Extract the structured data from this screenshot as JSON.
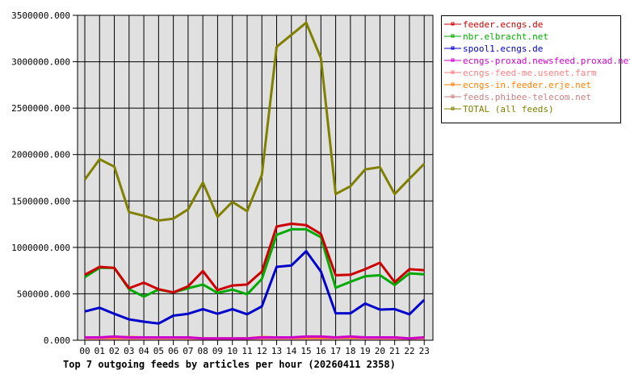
{
  "chart_data": {
    "type": "line",
    "title": "Top 7 outgoing feeds by articles per hour (20260411 2358)",
    "xlabel": "",
    "ylabel": "",
    "ylim": [
      0,
      3500000
    ],
    "grid": true,
    "legend_position": "right",
    "y_ticks": [
      "0.000",
      "500000.000",
      "1000000.000",
      "1500000.000",
      "2000000.000",
      "2500000.000",
      "3000000.000",
      "3500000.000"
    ],
    "y_tick_values": [
      0,
      500000,
      1000000,
      1500000,
      2000000,
      2500000,
      3000000,
      3500000
    ],
    "categories": [
      "00",
      "01",
      "02",
      "03",
      "04",
      "05",
      "06",
      "07",
      "08",
      "09",
      "10",
      "11",
      "12",
      "13",
      "14",
      "15",
      "16",
      "17",
      "18",
      "19",
      "20",
      "21",
      "22",
      "23"
    ],
    "series": [
      {
        "name": "feeder.ecngs.de",
        "color": "#cc0000",
        "values": [
          705000,
          790000,
          780000,
          560000,
          620000,
          550000,
          515000,
          580000,
          745000,
          540000,
          590000,
          600000,
          740000,
          1225000,
          1255000,
          1240000,
          1145000,
          700000,
          705000,
          765000,
          835000,
          625000,
          765000,
          755000
        ]
      },
      {
        "name": "nbr.elbracht.net",
        "color": "#00aa00",
        "values": [
          680000,
          780000,
          780000,
          550000,
          470000,
          545000,
          515000,
          560000,
          600000,
          510000,
          545000,
          495000,
          660000,
          1135000,
          1195000,
          1195000,
          1110000,
          565000,
          630000,
          690000,
          700000,
          595000,
          720000,
          710000
        ]
      },
      {
        "name": "spool1.ecngs.de",
        "color": "#0000cc",
        "values": [
          310000,
          350000,
          285000,
          225000,
          200000,
          180000,
          265000,
          285000,
          335000,
          285000,
          335000,
          280000,
          365000,
          790000,
          805000,
          960000,
          740000,
          290000,
          290000,
          395000,
          330000,
          335000,
          280000,
          435000
        ]
      },
      {
        "name": "ecngs-proxad.newsfeed.proxad.net",
        "color": "#cc00cc",
        "values": [
          30000,
          30000,
          40000,
          30000,
          30000,
          30000,
          30000,
          30000,
          20000,
          20000,
          20000,
          20000,
          30000,
          30000,
          30000,
          40000,
          40000,
          30000,
          40000,
          30000,
          30000,
          30000,
          20000,
          30000
        ]
      },
      {
        "name": "ecngs-feed-me.usenet.farm",
        "color": "#ff8080",
        "values": [
          20000,
          20000,
          20000,
          20000,
          20000,
          20000,
          20000,
          20000,
          20000,
          20000,
          20000,
          20000,
          20000,
          20000,
          20000,
          20000,
          20000,
          20000,
          30000,
          20000,
          20000,
          20000,
          20000,
          20000
        ]
      },
      {
        "name": "ecngs-in.feeder.erje.net",
        "color": "#ff8000",
        "values": [
          30000,
          30000,
          30000,
          35000,
          30000,
          30000,
          30000,
          30000,
          20000,
          20000,
          20000,
          20000,
          35000,
          30000,
          30000,
          30000,
          30000,
          30000,
          30000,
          30000,
          30000,
          30000,
          20000,
          30000
        ]
      },
      {
        "name": "feeds.phibee-telecom.net",
        "color": "#cc8080",
        "values": [
          20000,
          20000,
          20000,
          20000,
          20000,
          20000,
          20000,
          20000,
          20000,
          20000,
          20000,
          20000,
          20000,
          20000,
          20000,
          20000,
          20000,
          20000,
          20000,
          20000,
          20000,
          20000,
          20000,
          20000
        ]
      },
      {
        "name": "TOTAL (all feeds)",
        "color": "#808000",
        "values": [
          1730000,
          1950000,
          1870000,
          1380000,
          1340000,
          1290000,
          1310000,
          1410000,
          1700000,
          1330000,
          1490000,
          1390000,
          1780000,
          3160000,
          3290000,
          3420000,
          3040000,
          1575000,
          1660000,
          1840000,
          1865000,
          1575000,
          1740000,
          1900000
        ]
      }
    ]
  }
}
